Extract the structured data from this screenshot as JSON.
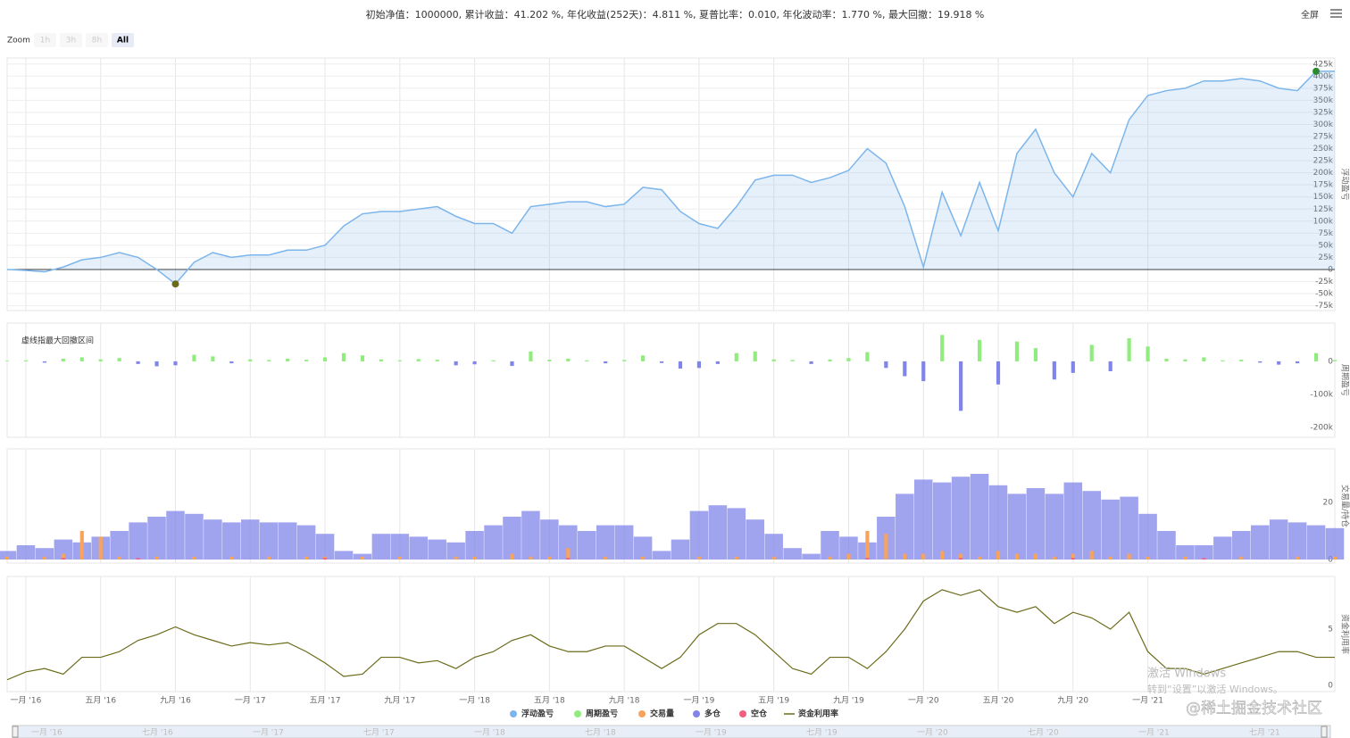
{
  "header": {
    "stats": "初始净值：1000000, 累计收益：41.202 %, 年化收益(252天)：4.811 %, 夏普比率：0.010, 年化波动率：1.770 %, 最大回撤：19.918 %",
    "fullscreen": "全屏"
  },
  "zoom": {
    "label": "Zoom",
    "buttons": [
      "1h",
      "3h",
      "8h",
      "All"
    ]
  },
  "watermarks": [
    "激活 Windows",
    "转到“设置”以激活 Windows。",
    "@稀土掘金技术社区"
  ],
  "navigator": {
    "labels": [
      "一月 '16",
      "七月 '16",
      "一月 '17",
      "七月 '17",
      "一月 '18",
      "七月 '18",
      "一月 '19",
      "七月 '19",
      "一月 '20",
      "七月 '20",
      "一月 '21",
      "七月 '21"
    ]
  },
  "chart_data": [
    {
      "type": "area",
      "axis_title": "浮动盈亏",
      "xlim": [
        "2015-12",
        "2021-11"
      ],
      "ylim": [
        -85000,
        437500
      ],
      "grid": true,
      "x": [
        "2015-12",
        "2016-01",
        "2016-02",
        "2016-03",
        "2016-04",
        "2016-05",
        "2016-06",
        "2016-07",
        "2016-08",
        "2016-09",
        "2016-10",
        "2016-11",
        "2016-12",
        "2017-01",
        "2017-02",
        "2017-03",
        "2017-04",
        "2017-05",
        "2017-06",
        "2017-07",
        "2017-08",
        "2017-09",
        "2017-10",
        "2017-11",
        "2017-12",
        "2018-01",
        "2018-02",
        "2018-03",
        "2018-04",
        "2018-05",
        "2018-06",
        "2018-07",
        "2018-08",
        "2018-09",
        "2018-10",
        "2018-11",
        "2018-12",
        "2019-01",
        "2019-02",
        "2019-03",
        "2019-04",
        "2019-05",
        "2019-06",
        "2019-07",
        "2019-08",
        "2019-09",
        "2019-10",
        "2019-11",
        "2019-12",
        "2020-01",
        "2020-02",
        "2020-03",
        "2020-04",
        "2020-05",
        "2020-06",
        "2020-07",
        "2020-08",
        "2020-09",
        "2020-10",
        "2020-11",
        "2020-12",
        "2021-01",
        "2021-02",
        "2021-03",
        "2021-04",
        "2021-05",
        "2021-06",
        "2021-07",
        "2021-08",
        "2021-09",
        "2021-10",
        "2021-11"
      ],
      "yticks": [
        {
          "value": 425000,
          "label": "425k"
        },
        {
          "value": 400000,
          "label": "400k"
        },
        {
          "value": 375000,
          "label": "375k"
        },
        {
          "value": 350000,
          "label": "350k"
        },
        {
          "value": 325000,
          "label": "325k"
        },
        {
          "value": 300000,
          "label": "300k"
        },
        {
          "value": 275000,
          "label": "275k"
        },
        {
          "value": 250000,
          "label": "250k"
        },
        {
          "value": 225000,
          "label": "225k"
        },
        {
          "value": 200000,
          "label": "200k"
        },
        {
          "value": 175000,
          "label": "175k"
        },
        {
          "value": 150000,
          "label": "150k"
        },
        {
          "value": 125000,
          "label": "125k"
        },
        {
          "value": 100000,
          "label": "100k"
        },
        {
          "value": 75000,
          "label": "75k"
        },
        {
          "value": 50000,
          "label": "50k"
        },
        {
          "value": 25000,
          "label": "25k"
        },
        0,
        {
          "value": -25000,
          "label": "-25k"
        },
        {
          "value": -50000,
          "label": "-50k"
        },
        {
          "value": -75000,
          "label": "-75k"
        }
      ],
      "series": [
        {
          "name": "浮动盈亏",
          "color": "#7cb5ec",
          "values": [
            0,
            -2000,
            -5000,
            5000,
            20000,
            25000,
            35000,
            25000,
            0,
            -30000,
            15000,
            35000,
            25000,
            30000,
            30000,
            40000,
            40000,
            50000,
            90000,
            115000,
            120000,
            120000,
            125000,
            130000,
            110000,
            95000,
            95000,
            75000,
            130000,
            135000,
            140000,
            140000,
            130000,
            135000,
            170000,
            165000,
            120000,
            95000,
            85000,
            130000,
            185000,
            195000,
            195000,
            180000,
            190000,
            205000,
            250000,
            220000,
            130000,
            5000,
            160000,
            70000,
            180000,
            80000,
            240000,
            290000,
            200000,
            150000,
            240000,
            200000,
            310000,
            360000,
            370000,
            375000,
            390000,
            390000,
            395000,
            390000,
            375000,
            370000,
            410000,
            410000
          ]
        }
      ]
    },
    {
      "type": "bar",
      "axis_title": "周期盈亏",
      "annotation": "虚线指最大回撤区间",
      "xlim": [
        "2015-12",
        "2021-11"
      ],
      "ylim": [
        -230000,
        116000
      ],
      "negative_color": "#8085e9",
      "x": [
        "2015-12",
        "2016-01",
        "2016-02",
        "2016-03",
        "2016-04",
        "2016-05",
        "2016-06",
        "2016-07",
        "2016-08",
        "2016-09",
        "2016-10",
        "2016-11",
        "2016-12",
        "2017-01",
        "2017-02",
        "2017-03",
        "2017-04",
        "2017-05",
        "2017-06",
        "2017-07",
        "2017-08",
        "2017-09",
        "2017-10",
        "2017-11",
        "2017-12",
        "2018-01",
        "2018-02",
        "2018-03",
        "2018-04",
        "2018-05",
        "2018-06",
        "2018-07",
        "2018-08",
        "2018-09",
        "2018-10",
        "2018-11",
        "2018-12",
        "2019-01",
        "2019-02",
        "2019-03",
        "2019-04",
        "2019-05",
        "2019-06",
        "2019-07",
        "2019-08",
        "2019-09",
        "2019-10",
        "2019-11",
        "2019-12",
        "2020-01",
        "2020-02",
        "2020-03",
        "2020-04",
        "2020-05",
        "2020-06",
        "2020-07",
        "2020-08",
        "2020-09",
        "2020-10",
        "2020-11",
        "2020-12",
        "2021-01",
        "2021-02",
        "2021-03",
        "2021-04",
        "2021-05",
        "2021-06",
        "2021-07",
        "2021-08",
        "2021-09",
        "2021-10",
        "2021-11"
      ],
      "yticks": [
        0,
        {
          "value": -100000,
          "label": "-100k"
        },
        {
          "value": -200000,
          "label": "-200k"
        }
      ],
      "series": [
        {
          "name": "周期盈亏",
          "color": "#90ed7d",
          "values": [
            2000,
            3000,
            -4000,
            8000,
            12000,
            6000,
            10000,
            -8000,
            -15000,
            -12000,
            20000,
            15000,
            -6000,
            6000,
            4000,
            8000,
            5000,
            12000,
            25000,
            18000,
            6000,
            3000,
            7000,
            5000,
            -12000,
            -9000,
            3000,
            -14000,
            30000,
            5000,
            8000,
            3000,
            -6000,
            4000,
            18000,
            -5000,
            -22000,
            -20000,
            -8000,
            25000,
            30000,
            6000,
            4000,
            -8000,
            6000,
            10000,
            28000,
            -20000,
            -45000,
            -60000,
            80000,
            -150000,
            65000,
            -70000,
            60000,
            40000,
            -55000,
            -35000,
            50000,
            -30000,
            70000,
            45000,
            8000,
            6000,
            12000,
            3000,
            5000,
            -4000,
            -10000,
            -6000,
            25000,
            4000
          ]
        }
      ]
    },
    {
      "type": "bar",
      "axis_title": "交易量/持仓",
      "xlim": [
        "2015-12",
        "2021-11"
      ],
      "ylim": [
        -1.25,
        38.75
      ],
      "x": [
        "2015-12",
        "2016-01",
        "2016-02",
        "2016-03",
        "2016-04",
        "2016-05",
        "2016-06",
        "2016-07",
        "2016-08",
        "2016-09",
        "2016-10",
        "2016-11",
        "2016-12",
        "2017-01",
        "2017-02",
        "2017-03",
        "2017-04",
        "2017-05",
        "2017-06",
        "2017-07",
        "2017-08",
        "2017-09",
        "2017-10",
        "2017-11",
        "2017-12",
        "2018-01",
        "2018-02",
        "2018-03",
        "2018-04",
        "2018-05",
        "2018-06",
        "2018-07",
        "2018-08",
        "2018-09",
        "2018-10",
        "2018-11",
        "2018-12",
        "2019-01",
        "2019-02",
        "2019-03",
        "2019-04",
        "2019-05",
        "2019-06",
        "2019-07",
        "2019-08",
        "2019-09",
        "2019-10",
        "2019-11",
        "2019-12",
        "2020-01",
        "2020-02",
        "2020-03",
        "2020-04",
        "2020-05",
        "2020-06",
        "2020-07",
        "2020-08",
        "2020-09",
        "2020-10",
        "2020-11",
        "2020-12",
        "2021-01",
        "2021-02",
        "2021-03",
        "2021-04",
        "2021-05",
        "2021-06",
        "2021-07",
        "2021-08",
        "2021-09",
        "2021-10",
        "2021-11"
      ],
      "yticks": [
        20,
        0
      ],
      "series": [
        {
          "name": "交易量",
          "color": "#f7a35c",
          "values": [
            1,
            0,
            1,
            2,
            10,
            8,
            1,
            0,
            1,
            0,
            1,
            0,
            1,
            0,
            1,
            0,
            1,
            1,
            0,
            1,
            0,
            1,
            0,
            0,
            1,
            1,
            0,
            2,
            1,
            1,
            4,
            0,
            1,
            0,
            1,
            0,
            0,
            1,
            0,
            1,
            0,
            1,
            0,
            0,
            1,
            2,
            10,
            9,
            2,
            2,
            3,
            2,
            1,
            3,
            2,
            2,
            1,
            2,
            3,
            1,
            2,
            1,
            0,
            1,
            0,
            0,
            1,
            0,
            0,
            1,
            0,
            1
          ]
        },
        {
          "name": "多仓",
          "color": "#8085e9",
          "values": [
            3,
            5,
            4,
            7,
            6,
            8,
            10,
            13,
            15,
            17,
            16,
            14,
            13,
            14,
            13,
            13,
            12,
            9,
            3,
            2,
            9,
            9,
            8,
            7,
            6,
            10,
            12,
            15,
            17,
            14,
            12,
            10,
            12,
            12,
            8,
            3,
            7,
            17,
            19,
            18,
            14,
            9,
            4,
            2,
            10,
            8,
            6,
            15,
            23,
            28,
            27,
            29,
            30,
            26,
            23,
            25,
            23,
            27,
            24,
            21,
            22,
            16,
            10,
            5,
            5,
            8,
            10,
            12,
            14,
            13,
            12,
            11
          ]
        },
        {
          "name": "空仓",
          "color": "#f15c80",
          "values": [
            0,
            0,
            0,
            0.5,
            0,
            0,
            0,
            0.5,
            0,
            0,
            0,
            0,
            0,
            0,
            0,
            0,
            0,
            0.5,
            0,
            0,
            0,
            0,
            0,
            0,
            0,
            0,
            0,
            0,
            0,
            0,
            0.5,
            0,
            0,
            0,
            0,
            0,
            0,
            0,
            0,
            0,
            0,
            0,
            0,
            0,
            0,
            0,
            0.5,
            0,
            0,
            0,
            0,
            0.5,
            0,
            0,
            0,
            0,
            0,
            0.5,
            0,
            0,
            0,
            0,
            0,
            0,
            0.5,
            0,
            0,
            0,
            0,
            0,
            0,
            0
          ]
        }
      ]
    },
    {
      "type": "line",
      "axis_title": "资金利用率",
      "xlim": [
        "2015-12",
        "2021-11"
      ],
      "ylim": [
        -0.55,
        9.68
      ],
      "x": [
        "2015-12",
        "2016-01",
        "2016-02",
        "2016-03",
        "2016-04",
        "2016-05",
        "2016-06",
        "2016-07",
        "2016-08",
        "2016-09",
        "2016-10",
        "2016-11",
        "2016-12",
        "2017-01",
        "2017-02",
        "2017-03",
        "2017-04",
        "2017-05",
        "2017-06",
        "2017-07",
        "2017-08",
        "2017-09",
        "2017-10",
        "2017-11",
        "2017-12",
        "2018-01",
        "2018-02",
        "2018-03",
        "2018-04",
        "2018-05",
        "2018-06",
        "2018-07",
        "2018-08",
        "2018-09",
        "2018-10",
        "2018-11",
        "2018-12",
        "2019-01",
        "2019-02",
        "2019-03",
        "2019-04",
        "2019-05",
        "2019-06",
        "2019-07",
        "2019-08",
        "2019-09",
        "2019-10",
        "2019-11",
        "2019-12",
        "2020-01",
        "2020-02",
        "2020-03",
        "2020-04",
        "2020-05",
        "2020-06",
        "2020-07",
        "2020-08",
        "2020-09",
        "2020-10",
        "2020-11",
        "2020-12",
        "2021-01",
        "2021-02",
        "2021-03",
        "2021-04",
        "2021-05",
        "2021-06",
        "2021-07",
        "2021-08",
        "2021-09",
        "2021-10",
        "2021-11"
      ],
      "yticks": [
        5,
        0
      ],
      "xticks": [
        {
          "value": "2016-01",
          "label": "一月 '16"
        },
        {
          "value": "2016-05",
          "label": "五月 '16"
        },
        {
          "value": "2016-09",
          "label": "九月 '16"
        },
        {
          "value": "2017-01",
          "label": "一月 '17"
        },
        {
          "value": "2017-05",
          "label": "五月 '17"
        },
        {
          "value": "2017-09",
          "label": "九月 '17"
        },
        {
          "value": "2018-01",
          "label": "一月 '18"
        },
        {
          "value": "2018-05",
          "label": "五月 '18"
        },
        {
          "value": "2018-09",
          "label": "九月 '18"
        },
        {
          "value": "2019-01",
          "label": "一月 '19"
        },
        {
          "value": "2019-05",
          "label": "五月 '19"
        },
        {
          "value": "2019-09",
          "label": "九月 '19"
        },
        {
          "value": "2020-01",
          "label": "一月 '20"
        },
        {
          "value": "2020-05",
          "label": "五月 '20"
        },
        {
          "value": "2020-09",
          "label": "九月 '20"
        },
        {
          "value": "2021-01",
          "label": "一月 '21"
        }
      ],
      "series": [
        {
          "name": "资金利用率",
          "color": "#6b6b1a",
          "values": [
            0.5,
            1.2,
            1.5,
            1.0,
            2.5,
            2.5,
            3.0,
            4.0,
            4.5,
            5.2,
            4.5,
            4.0,
            3.5,
            3.8,
            3.6,
            3.8,
            3.0,
            2.0,
            0.8,
            1.0,
            2.5,
            2.5,
            2.0,
            2.2,
            1.5,
            2.5,
            3.0,
            4.0,
            4.5,
            3.5,
            3.0,
            3.0,
            3.5,
            3.5,
            2.5,
            1.5,
            2.5,
            4.5,
            5.5,
            5.5,
            4.5,
            3.0,
            1.5,
            1.0,
            2.5,
            2.5,
            1.5,
            3.0,
            5.0,
            7.5,
            8.5,
            8.0,
            8.5,
            7.0,
            6.5,
            7.0,
            5.5,
            6.5,
            6.0,
            5.0,
            6.5,
            3.0,
            1.5,
            1.5,
            1.0,
            1.5,
            2.0,
            2.5,
            3.0,
            3.0,
            2.5,
            2.5
          ]
        }
      ]
    }
  ]
}
